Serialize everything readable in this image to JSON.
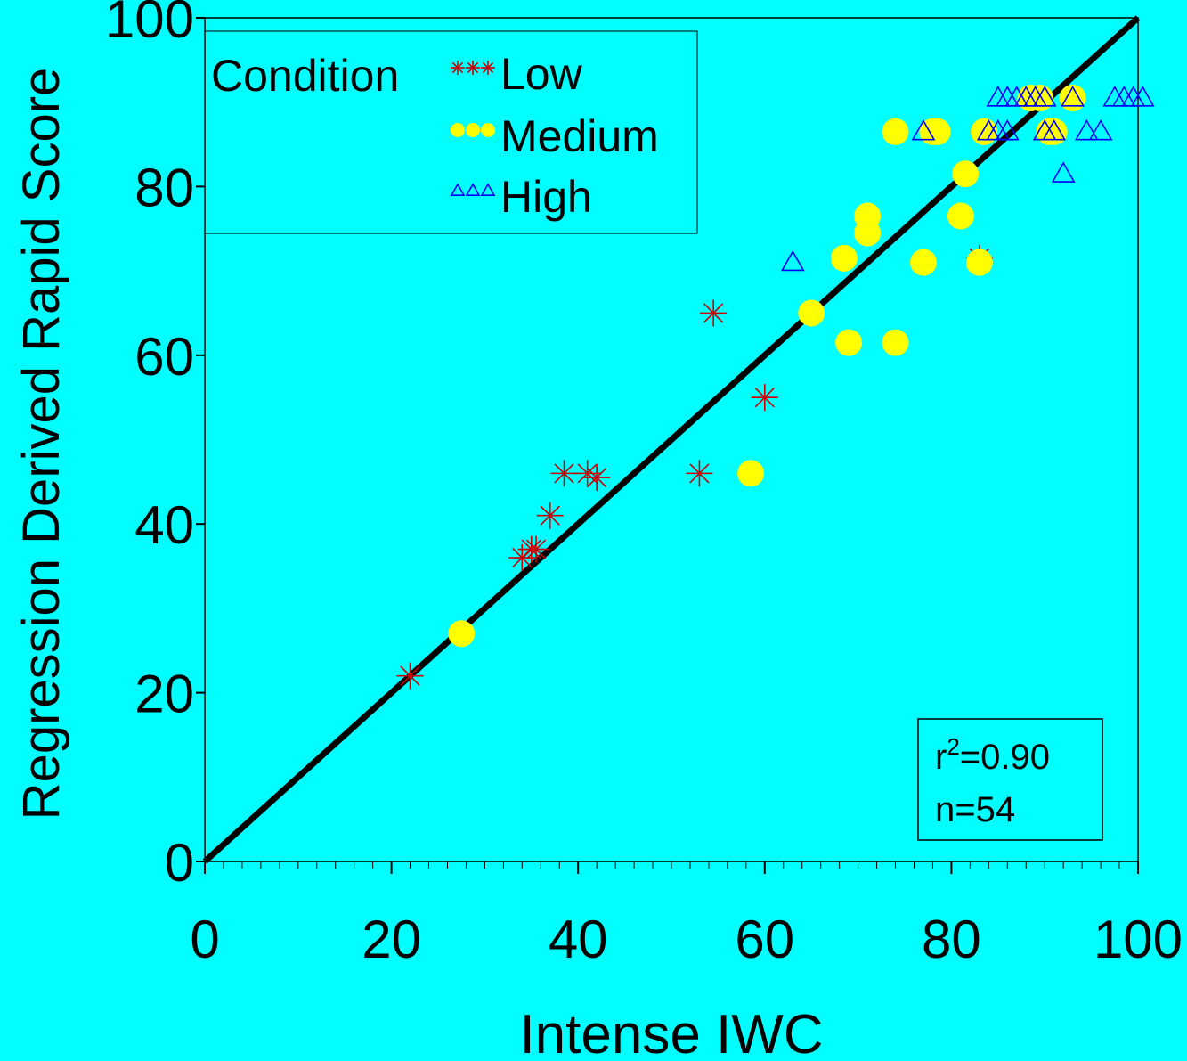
{
  "chart_data": {
    "type": "scatter",
    "title": "",
    "xlabel": "Intense IWC",
    "ylabel": "Regression Derived Rapid Score",
    "xlim": [
      0,
      100
    ],
    "ylim": [
      0,
      100
    ],
    "x_ticks": [
      0,
      20,
      40,
      60,
      80,
      100
    ],
    "y_ticks": [
      0,
      20,
      40,
      60,
      80,
      100
    ],
    "grid": false,
    "legend": {
      "title": "Condition",
      "placement": "top-left"
    },
    "series": [
      {
        "name": "Low",
        "marker": "asterisk",
        "color": "#CC0000",
        "points": [
          [
            22,
            22
          ],
          [
            34,
            36
          ],
          [
            35,
            37
          ],
          [
            35.5,
            37
          ],
          [
            37,
            41
          ],
          [
            38.5,
            46
          ],
          [
            41,
            46
          ],
          [
            42,
            45.5
          ],
          [
            53,
            46
          ],
          [
            54.5,
            65
          ],
          [
            60,
            55
          ],
          [
            83,
            71.5
          ]
        ]
      },
      {
        "name": "Medium",
        "marker": "circle",
        "color": "#FFFF00",
        "points": [
          [
            27.5,
            27
          ],
          [
            58.5,
            46
          ],
          [
            65,
            65
          ],
          [
            68.5,
            71.5
          ],
          [
            69,
            61.5
          ],
          [
            71,
            74.5
          ],
          [
            71,
            76.5
          ],
          [
            74,
            61.5
          ],
          [
            74,
            86.5
          ],
          [
            77,
            71
          ],
          [
            78,
            86.5
          ],
          [
            78.5,
            86.5
          ],
          [
            81,
            76.5
          ],
          [
            81.5,
            81.5
          ],
          [
            83,
            71
          ],
          [
            83.5,
            86.5
          ],
          [
            88.5,
            90.5
          ],
          [
            89.5,
            90.5
          ],
          [
            90.5,
            86.5
          ],
          [
            91,
            86.5
          ],
          [
            93,
            90.5
          ]
        ]
      },
      {
        "name": "High",
        "marker": "triangle",
        "color": "#0000FF",
        "points": [
          [
            63,
            71
          ],
          [
            77,
            86.5
          ],
          [
            84,
            86.5
          ],
          [
            85,
            86.5
          ],
          [
            86,
            86.5
          ],
          [
            85,
            90.5
          ],
          [
            86,
            90.5
          ],
          [
            87,
            90.5
          ],
          [
            88,
            90.5
          ],
          [
            89,
            90.5
          ],
          [
            90,
            90.5
          ],
          [
            90,
            86.5
          ],
          [
            91,
            86.5
          ],
          [
            92,
            81.5
          ],
          [
            93,
            90.5
          ],
          [
            94.5,
            86.5
          ],
          [
            96,
            86.5
          ],
          [
            97.5,
            90.5
          ],
          [
            98.5,
            90.5
          ],
          [
            99.5,
            90.5
          ],
          [
            100.5,
            90.5
          ]
        ]
      }
    ],
    "fit_line": {
      "from": [
        0,
        0
      ],
      "to": [
        100,
        100
      ],
      "color": "#000000"
    },
    "annotation": {
      "r2_prefix": "r",
      "r2_sup": "2",
      "r2_value": "=0.90",
      "n_text": "n=54"
    }
  }
}
